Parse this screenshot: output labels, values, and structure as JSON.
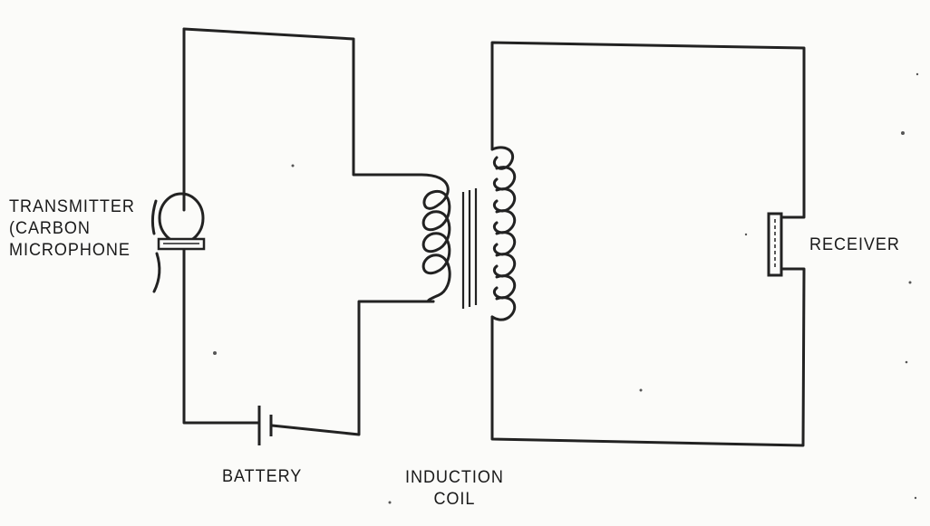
{
  "labels": {
    "transmitter": "TRANSMITTER\n(CARBON\nMICROPHONE",
    "receiver": "RECEIVER",
    "battery": "BATTERY",
    "induction_coil": "INDUCTION\nCOIL"
  },
  "colors": {
    "ink": "#222222",
    "paper": "#fbfbf9"
  }
}
